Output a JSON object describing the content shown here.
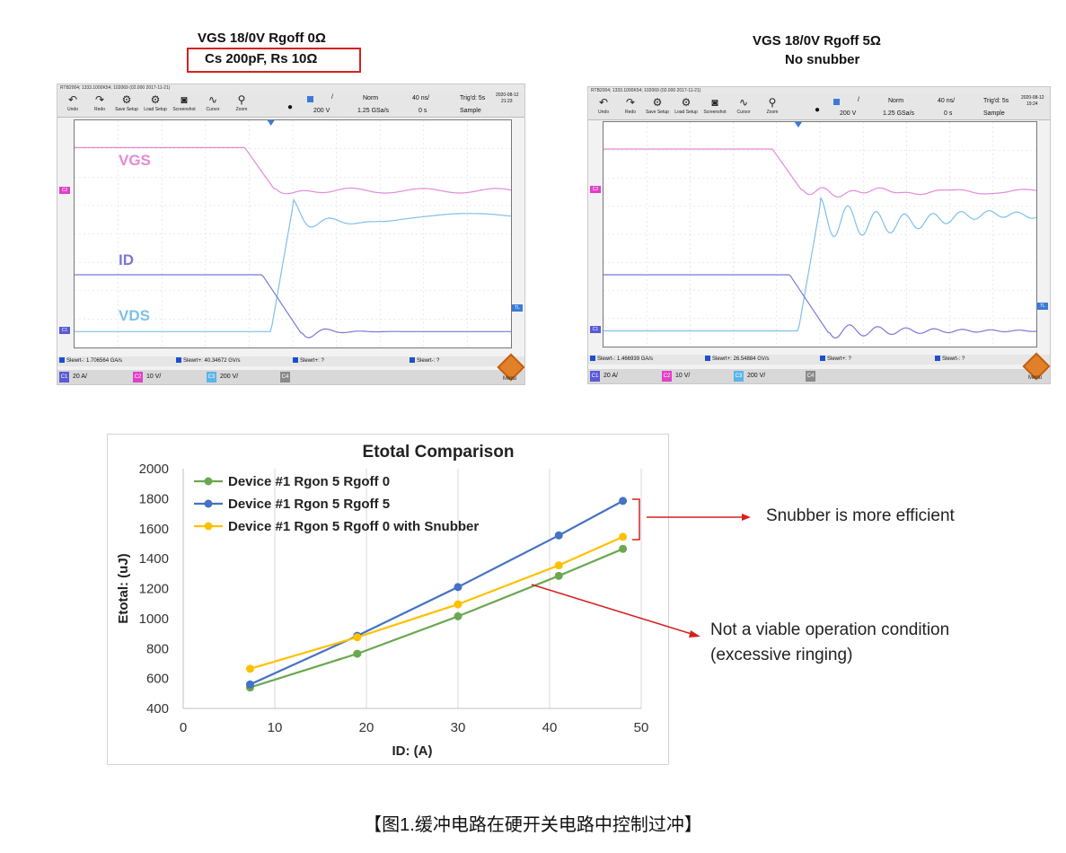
{
  "left_panel": {
    "title_line1": "VGS 18/0V Rgoff 0Ω",
    "title_line2": "Cs 200pF, Rs 10Ω",
    "status": "RTB2004; 1333.1000K54; 102069 (02.000 2017-11-21)",
    "datetime_line1": "2020-08-12",
    "datetime_line2": "21:23",
    "toolbar": {
      "buttons": [
        "Undo",
        "Redo",
        "Save Setup",
        "Load Setup",
        "Screenshot",
        "Cursor",
        "Zoom"
      ],
      "volts": "200 V",
      "mode": "Norm",
      "rate": "1.25 GSa/s",
      "timebase": "40 ns/",
      "time_offset": "0 s",
      "trig": "Trig'd: 5s",
      "acq": "Sample"
    },
    "slew": [
      "Slewrt-: 1.706564 GA/s",
      "Slewrt+: 40.34672 GV/s",
      "Slewrt+: ?",
      "Slewrt-: ?"
    ],
    "channels": [
      {
        "tag": "C1",
        "value": "20 A/",
        "color": "#5a5ad6"
      },
      {
        "tag": "C2",
        "value": "10 V/",
        "color": "#e040c8"
      },
      {
        "tag": "C3",
        "value": "200 V/",
        "color": "#5ab4e8"
      },
      {
        "tag": "C4",
        "value": "",
        "color": "#8a8a8a"
      }
    ],
    "menu_label": "Menu",
    "trace_labels": {
      "vgs": "VGS",
      "id": "ID",
      "vds": "VDS"
    }
  },
  "right_panel": {
    "title_line1": "VGS 18/0V Rgoff 5Ω",
    "title_line2": "No snubber",
    "status": "RTB2004; 1333.1000K54; 102069 (02.000 2017-11-21)",
    "datetime_line1": "2020-08-12",
    "datetime_line2": "19:24",
    "toolbar": {
      "buttons": [
        "Undo",
        "Redo",
        "Save Setup",
        "Load Setup",
        "Screenshot",
        "Cursor",
        "Zoom"
      ],
      "volts": "200 V",
      "mode": "Norm",
      "rate": "1.25 GSa/s",
      "timebase": "40 ns/",
      "time_offset": "0 s",
      "trig": "Trig'd: 5s",
      "acq": "Sample"
    },
    "slew": [
      "Slewrt-: 1.466939 GA/s",
      "Slewrt+: 26.54884 GV/s",
      "Slewrt+: ?",
      "Slewrt-: ?"
    ],
    "channels": [
      {
        "tag": "C1",
        "value": "20 A/",
        "color": "#5a5ad6"
      },
      {
        "tag": "C2",
        "value": "10 V/",
        "color": "#e040c8"
      },
      {
        "tag": "C3",
        "value": "200 V/",
        "color": "#5ab4e8"
      },
      {
        "tag": "C4",
        "value": "",
        "color": "#8a8a8a"
      }
    ],
    "menu_label": "Menu"
  },
  "colors": {
    "vgs": "#e48ad8",
    "id": "#7a78d6",
    "vds": "#7ec0e8",
    "series_green": "#6aa84f",
    "series_blue": "#4472c4",
    "series_yellow": "#ffc000",
    "annotation_red": "#d62020"
  },
  "chart_data": {
    "type": "line",
    "title": "Etotal Comparison",
    "xlabel": "ID: (A)",
    "ylabel": "Etotal: (uJ)",
    "xlim": [
      0,
      50
    ],
    "ylim": [
      400,
      2000
    ],
    "xticks": [
      0,
      10,
      20,
      30,
      40,
      50
    ],
    "yticks": [
      400,
      600,
      800,
      1000,
      1200,
      1400,
      1600,
      1800,
      2000
    ],
    "grid": "vertical",
    "legend_position": "top-left",
    "series": [
      {
        "name": "Device #1 Rgon 5 Rgoff 0",
        "color": "#6aa84f",
        "x": [
          7.3,
          19,
          30,
          41,
          48
        ],
        "y": [
          540,
          765,
          1015,
          1285,
          1465
        ]
      },
      {
        "name": "Device #1 Rgon 5 Rgoff 5",
        "color": "#4472c4",
        "x": [
          7.3,
          19,
          30,
          41,
          48
        ],
        "y": [
          560,
          885,
          1210,
          1555,
          1785
        ]
      },
      {
        "name": "Device #1 Rgon 5 Rgoff 0 with Snubber",
        "color": "#ffc000",
        "x": [
          7.3,
          19,
          30,
          41,
          48
        ],
        "y": [
          665,
          875,
          1095,
          1355,
          1545
        ]
      }
    ]
  },
  "annotations": {
    "snubber": "Snubber is more efficient",
    "not_viable_1": "Not a viable operation condition",
    "not_viable_2": "(excessive ringing)"
  },
  "caption": "【图1.缓冲电路在硬开关电路中控制过冲】"
}
